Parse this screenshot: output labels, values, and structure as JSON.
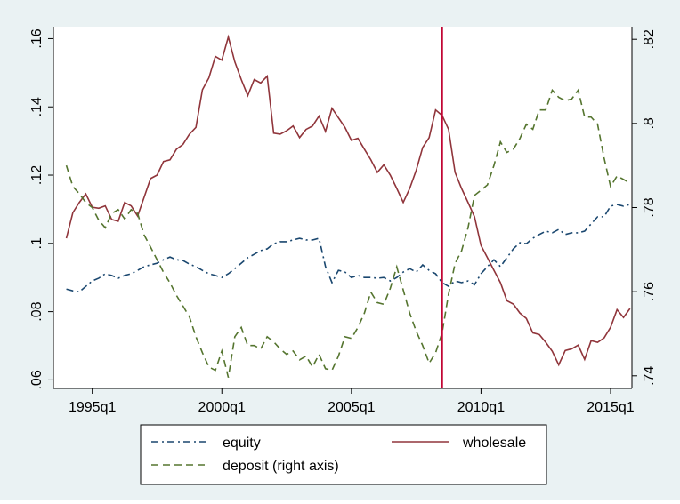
{
  "chart_data": {
    "type": "line",
    "x": [
      136,
      137,
      138,
      139,
      140,
      141,
      142,
      143,
      144,
      145,
      146,
      147,
      148,
      149,
      150,
      151,
      152,
      153,
      154,
      155,
      156,
      157,
      158,
      159,
      160,
      161,
      162,
      163,
      164,
      165,
      166,
      167,
      168,
      169,
      170,
      171,
      172,
      173,
      174,
      175,
      176,
      177,
      178,
      179,
      180,
      181,
      182,
      183,
      184,
      185,
      186,
      187,
      188,
      189,
      190,
      191,
      192,
      193,
      194,
      195,
      196,
      197,
      198,
      199,
      200,
      201,
      202,
      203,
      204,
      205,
      206,
      207,
      208,
      209,
      210,
      211,
      212,
      213,
      214,
      215,
      216,
      217,
      218,
      219,
      220,
      221,
      222,
      223
    ],
    "xlim": [
      134,
      223.3
    ],
    "xticks": [
      {
        "value": 140,
        "label": "1995q1"
      },
      {
        "value": 160,
        "label": "2000q1"
      },
      {
        "value": 180,
        "label": "2005q1"
      },
      {
        "value": 200,
        "label": "2010q1"
      },
      {
        "value": 220,
        "label": "2015q1"
      }
    ],
    "ylim": [
      0.0575,
      0.1635
    ],
    "yticks": [
      {
        "value": 0.06,
        "label": ".06"
      },
      {
        "value": 0.08,
        "label": ".08"
      },
      {
        "value": 0.1,
        "label": ".1"
      },
      {
        "value": 0.12,
        "label": ".12"
      },
      {
        "value": 0.14,
        "label": ".14"
      },
      {
        "value": 0.16,
        "label": ".16"
      }
    ],
    "y2lim": [
      0.737,
      0.823
    ],
    "y2ticks": [
      {
        "value": 0.74,
        "label": ".74"
      },
      {
        "value": 0.76,
        "label": ".76"
      },
      {
        "value": 0.78,
        "label": ".78"
      },
      {
        "value": 0.8,
        "label": ".8"
      },
      {
        "value": 0.82,
        "label": ".82"
      }
    ],
    "xline": {
      "value": 194,
      "color": "#c10534"
    },
    "series": [
      {
        "name": "equity",
        "color": "#1a476f",
        "dash": "dashdot",
        "values": [
          0.0866,
          0.0861,
          0.0858,
          0.0874,
          0.089,
          0.0898,
          0.0911,
          0.0906,
          0.0898,
          0.0906,
          0.0911,
          0.0921,
          0.0932,
          0.0937,
          0.0942,
          0.0952,
          0.096,
          0.0952,
          0.095,
          0.0939,
          0.0932,
          0.0921,
          0.0911,
          0.0906,
          0.09,
          0.0911,
          0.0926,
          0.0942,
          0.0958,
          0.0968,
          0.0979,
          0.0984,
          0.0999,
          0.1005,
          0.1005,
          0.101,
          0.1015,
          0.101,
          0.101,
          0.1015,
          0.0932,
          0.0885,
          0.0921,
          0.0916,
          0.09,
          0.0906,
          0.09,
          0.09,
          0.0898,
          0.09,
          0.089,
          0.09,
          0.0916,
          0.0926,
          0.0916,
          0.0937,
          0.0921,
          0.0911,
          0.0885,
          0.0874,
          0.089,
          0.0885,
          0.089,
          0.0879,
          0.0911,
          0.0932,
          0.0952,
          0.0932,
          0.0958,
          0.0984,
          0.1002,
          0.0999,
          0.1015,
          0.1026,
          0.1036,
          0.1031,
          0.1041,
          0.1026,
          0.1031,
          0.1031,
          0.1036,
          0.1057,
          0.1078,
          0.1078,
          0.1109,
          0.1114,
          0.1109,
          0.1114
        ]
      },
      {
        "name": "wholesale",
        "color": "#90353b",
        "dash": "solid",
        "values": [
          0.1015,
          0.109,
          0.112,
          0.1145,
          0.1106,
          0.1103,
          0.111,
          0.107,
          0.1065,
          0.112,
          0.111,
          0.108,
          0.1135,
          0.119,
          0.12,
          0.124,
          0.1245,
          0.1276,
          0.129,
          0.132,
          0.134,
          0.145,
          0.1485,
          0.1548,
          0.1537,
          0.1605,
          0.1532,
          0.148,
          0.1433,
          0.148,
          0.147,
          0.149,
          0.1323,
          0.132,
          0.133,
          0.1344,
          0.131,
          0.1334,
          0.1344,
          0.1373,
          0.1328,
          0.1396,
          0.1368,
          0.134,
          0.1302,
          0.1308,
          0.1276,
          0.1245,
          0.1208,
          0.123,
          0.12,
          0.1161,
          0.112,
          0.1161,
          0.1214,
          0.1281,
          0.131,
          0.1391,
          0.1375,
          0.1334,
          0.1208,
          0.1161,
          0.112,
          0.1078,
          0.0994,
          0.0958,
          0.0921,
          0.0885,
          0.0832,
          0.0822,
          0.0796,
          0.078,
          0.0738,
          0.0733,
          0.071,
          0.0684,
          0.0644,
          0.0686,
          0.0691,
          0.0702,
          0.066,
          0.0715,
          0.071,
          0.0723,
          0.0754,
          0.0806,
          0.0783,
          0.0809
        ]
      },
      {
        "name": "deposit (right axis)",
        "color": "#55752f",
        "dash": "dashed",
        "axis": "y2",
        "values": [
          0.79,
          0.785,
          0.7833,
          0.7812,
          0.78,
          0.777,
          0.7752,
          0.7786,
          0.7795,
          0.7773,
          0.7795,
          0.7786,
          0.7735,
          0.7706,
          0.7676,
          0.7646,
          0.7621,
          0.7591,
          0.7566,
          0.754,
          0.7493,
          0.7455,
          0.7421,
          0.7413,
          0.7459,
          0.7396,
          0.7493,
          0.7515,
          0.7472,
          0.7472,
          0.7464,
          0.7493,
          0.7481,
          0.7464,
          0.7451,
          0.7459,
          0.7438,
          0.7447,
          0.7421,
          0.7451,
          0.7417,
          0.7413,
          0.7447,
          0.7493,
          0.7489,
          0.7515,
          0.7549,
          0.7599,
          0.7574,
          0.757,
          0.7608,
          0.7659,
          0.7604,
          0.7549,
          0.7506,
          0.7472,
          0.743,
          0.7455,
          0.7502,
          0.7595,
          0.7667,
          0.7697,
          0.7752,
          0.7829,
          0.7841,
          0.7854,
          0.79,
          0.7956,
          0.7931,
          0.7939,
          0.7964,
          0.7998,
          0.7986,
          0.8032,
          0.8032,
          0.8079,
          0.8062,
          0.8054,
          0.8058,
          0.8079,
          0.8015,
          0.8015,
          0.7998,
          0.7918,
          0.785,
          0.7875,
          0.7867,
          0.7858
        ]
      }
    ]
  }
}
